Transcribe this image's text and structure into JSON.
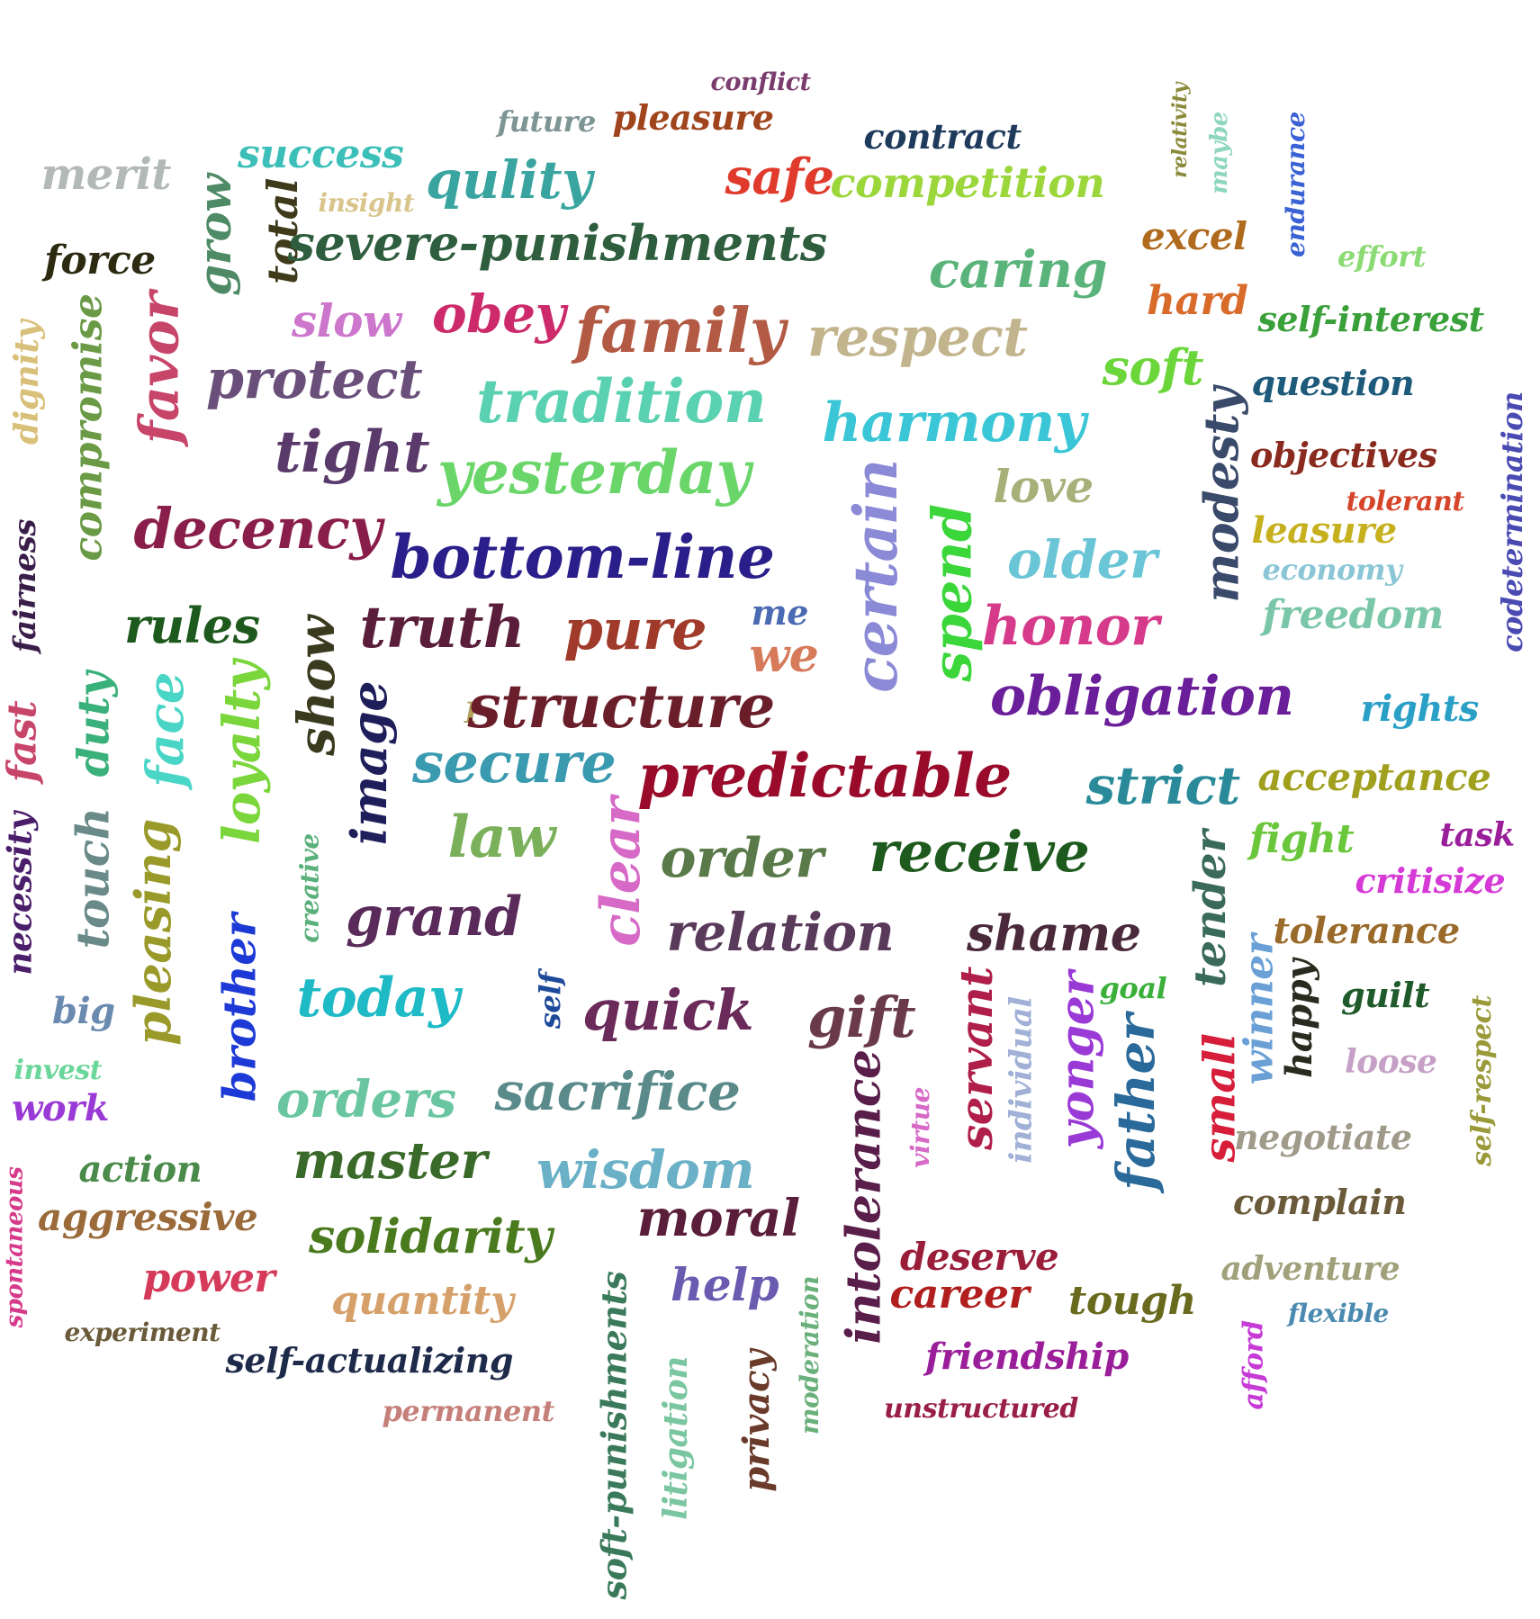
{
  "words": [
    {
      "text": "conflict",
      "color": "#7a3b6d"
    },
    {
      "text": "future",
      "color": "#7d9595"
    },
    {
      "text": "pleasure",
      "color": "#a0441e"
    },
    {
      "text": "contract",
      "color": "#1f3b5c"
    },
    {
      "text": "relativity",
      "color": "#8a8a3a"
    },
    {
      "text": "maybe",
      "color": "#8fd6bf"
    },
    {
      "text": "endurance",
      "color": "#3a62d4"
    },
    {
      "text": "merit",
      "color": "#b2b9b6"
    },
    {
      "text": "success",
      "color": "#3bbfb8"
    },
    {
      "text": "qulity",
      "color": "#3aa5a0"
    },
    {
      "text": "safe",
      "color": "#e03a2c"
    },
    {
      "text": "competition",
      "color": "#9bd63a"
    },
    {
      "text": "insight",
      "color": "#d9c58c"
    },
    {
      "text": "grow",
      "color": "#4f8a66"
    },
    {
      "text": "total",
      "color": "#3f3a1a"
    },
    {
      "text": "severe-punishments",
      "color": "#2e5e3e"
    },
    {
      "text": "excel",
      "color": "#b06a1e"
    },
    {
      "text": "effort",
      "color": "#8adb74"
    },
    {
      "text": "force",
      "color": "#2d2a12"
    },
    {
      "text": "caring",
      "color": "#5ab37a"
    },
    {
      "text": "hard",
      "color": "#d86a2a"
    },
    {
      "text": "self-interest",
      "color": "#3aa03a"
    },
    {
      "text": "dignity",
      "color": "#d9c07a"
    },
    {
      "text": "compromise",
      "color": "#6a9a45"
    },
    {
      "text": "favor",
      "color": "#c8456a"
    },
    {
      "text": "slow",
      "color": "#cc77cc"
    },
    {
      "text": "obey",
      "color": "#cc2a6a"
    },
    {
      "text": "family",
      "color": "#b35a45"
    },
    {
      "text": "respect",
      "color": "#c2b48c"
    },
    {
      "text": "soft",
      "color": "#6ad63a"
    },
    {
      "text": "protect",
      "color": "#6a4f7a"
    },
    {
      "text": "question",
      "color": "#1e5a7a"
    },
    {
      "text": "tradition",
      "color": "#5ad2b2"
    },
    {
      "text": "harmony",
      "color": "#3ac6d6"
    },
    {
      "text": "modesty",
      "color": "#3a4a6a"
    },
    {
      "text": "codetermination",
      "color": "#4a4ab3"
    },
    {
      "text": "tight",
      "color": "#5a3a6a"
    },
    {
      "text": "yesterday",
      "color": "#6ad66a"
    },
    {
      "text": "objectives",
      "color": "#8a2a1e"
    },
    {
      "text": "love",
      "color": "#a8b07a"
    },
    {
      "text": "tolerant",
      "color": "#d6452a"
    },
    {
      "text": "fairness",
      "color": "#3a1e4a"
    },
    {
      "text": "decency",
      "color": "#8a1e4a"
    },
    {
      "text": "bottom-line",
      "color": "#2a1e8a"
    },
    {
      "text": "certain",
      "color": "#8a8ad6"
    },
    {
      "text": "spend",
      "color": "#3ad63a"
    },
    {
      "text": "older",
      "color": "#6ac6d6"
    },
    {
      "text": "leasure",
      "color": "#c6b01e"
    },
    {
      "text": "economy",
      "color": "#8ac6d6"
    },
    {
      "text": "rules",
      "color": "#1e5a1e"
    },
    {
      "text": "truth",
      "color": "#5a1e3a"
    },
    {
      "text": "pure",
      "color": "#a03a2a"
    },
    {
      "text": "me",
      "color": "#4a6ab3"
    },
    {
      "text": "we",
      "color": "#d67a5a"
    },
    {
      "text": "honor",
      "color": "#d63a8a"
    },
    {
      "text": "freedom",
      "color": "#7ac6a8"
    },
    {
      "text": "show",
      "color": "#3a3a1e"
    },
    {
      "text": "fast",
      "color": "#c8456a"
    },
    {
      "text": "duty",
      "color": "#3ab07a"
    },
    {
      "text": "face",
      "color": "#4ad6c6"
    },
    {
      "text": "loyalty",
      "color": "#7ad63a"
    },
    {
      "text": "image",
      "color": "#1e1e5a"
    },
    {
      "text": "I",
      "color": "#b0a05a"
    },
    {
      "text": "structure",
      "color": "#6a1e2a"
    },
    {
      "text": "obligation",
      "color": "#6a1e9a"
    },
    {
      "text": "rights",
      "color": "#2aa0c6"
    },
    {
      "text": "secure",
      "color": "#3a9ab0"
    },
    {
      "text": "predictable",
      "color": "#9a0a2a"
    },
    {
      "text": "strict",
      "color": "#2a8a9a"
    },
    {
      "text": "acceptance",
      "color": "#a0a01e"
    },
    {
      "text": "law",
      "color": "#7ab05a"
    },
    {
      "text": "clear",
      "color": "#d66ac6"
    },
    {
      "text": "order",
      "color": "#5a7a4a"
    },
    {
      "text": "receive",
      "color": "#1e5a1e"
    },
    {
      "text": "fight",
      "color": "#6ac63a"
    },
    {
      "text": "task",
      "color": "#9a1e9a"
    },
    {
      "text": "necessity",
      "color": "#4a1e6a"
    },
    {
      "text": "touch",
      "color": "#6a8a8a"
    },
    {
      "text": "pleasing",
      "color": "#9a9a2a"
    },
    {
      "text": "creative",
      "color": "#5ab07a"
    },
    {
      "text": "critisize",
      "color": "#d63ad6"
    },
    {
      "text": "tender",
      "color": "#3a6a5a"
    },
    {
      "text": "grand",
      "color": "#5a2a5a"
    },
    {
      "text": "relation",
      "color": "#5a3a5a"
    },
    {
      "text": "shame",
      "color": "#4a2a3a"
    },
    {
      "text": "tolerance",
      "color": "#9a6a2a"
    },
    {
      "text": "brother",
      "color": "#1e3ad6"
    },
    {
      "text": "today",
      "color": "#1ebac6"
    },
    {
      "text": "self",
      "color": "#1e4a9a"
    },
    {
      "text": "quick",
      "color": "#6a2a5a"
    },
    {
      "text": "gift",
      "color": "#6a3a4a"
    },
    {
      "text": "goal",
      "color": "#3ab03a"
    },
    {
      "text": "winner",
      "color": "#6aa0d6"
    },
    {
      "text": "happy",
      "color": "#2a2a1e"
    },
    {
      "text": "guilt",
      "color": "#1e5a2a"
    },
    {
      "text": "big",
      "color": "#6a8ab0"
    },
    {
      "text": "servant",
      "color": "#b01e4a"
    },
    {
      "text": "individual",
      "color": "#a0b0d6"
    },
    {
      "text": "yonger",
      "color": "#9a3ad6"
    },
    {
      "text": "self-respect",
      "color": "#9a9a3a"
    },
    {
      "text": "invest",
      "color": "#6ad69a"
    },
    {
      "text": "loose",
      "color": "#c6a0c6"
    },
    {
      "text": "work",
      "color": "#9a3ad6"
    },
    {
      "text": "orders",
      "color": "#6ac6a0"
    },
    {
      "text": "sacrifice",
      "color": "#5a8a8a"
    },
    {
      "text": "father",
      "color": "#2a6a9a"
    },
    {
      "text": "small",
      "color": "#d61e3a"
    },
    {
      "text": "virtue",
      "color": "#d66ac6"
    },
    {
      "text": "negotiate",
      "color": "#a09a8a"
    },
    {
      "text": "action",
      "color": "#4a8a4a"
    },
    {
      "text": "master",
      "color": "#3a6a2a"
    },
    {
      "text": "wisdom",
      "color": "#6ab0c6"
    },
    {
      "text": "intolerance",
      "color": "#5a1e4a"
    },
    {
      "text": "complain",
      "color": "#6a5a3a"
    },
    {
      "text": "aggressive",
      "color": "#9a6a3a"
    },
    {
      "text": "moral",
      "color": "#5a1e3a"
    },
    {
      "text": "solidarity",
      "color": "#4a7a1e"
    },
    {
      "text": "spontaneous",
      "color": "#d63a8a"
    },
    {
      "text": "deserve",
      "color": "#9a1e3a"
    },
    {
      "text": "adventure",
      "color": "#a0a07a"
    },
    {
      "text": "power",
      "color": "#d63a5a"
    },
    {
      "text": "career",
      "color": "#b01e1e"
    },
    {
      "text": "help",
      "color": "#6a5ab0"
    },
    {
      "text": "quantity",
      "color": "#d6a06a"
    },
    {
      "text": "tough",
      "color": "#6a6a1e"
    },
    {
      "text": "flexible",
      "color": "#4a8ab0"
    },
    {
      "text": "experiment",
      "color": "#6a5a3a"
    },
    {
      "text": "soft-punishments",
      "color": "#3a7a5a"
    },
    {
      "text": "moderation",
      "color": "#6ab07a"
    },
    {
      "text": "friendship",
      "color": "#9a1e9a"
    },
    {
      "text": "afford",
      "color": "#c63ad6"
    },
    {
      "text": "self-actualizing",
      "color": "#1e2a4a"
    },
    {
      "text": "litigation",
      "color": "#7ac6a0"
    },
    {
      "text": "privacy",
      "color": "#6a3a2a"
    },
    {
      "text": "unstructured",
      "color": "#9a1e4a"
    },
    {
      "text": "permanent",
      "color": "#c6807a"
    }
  ]
}
